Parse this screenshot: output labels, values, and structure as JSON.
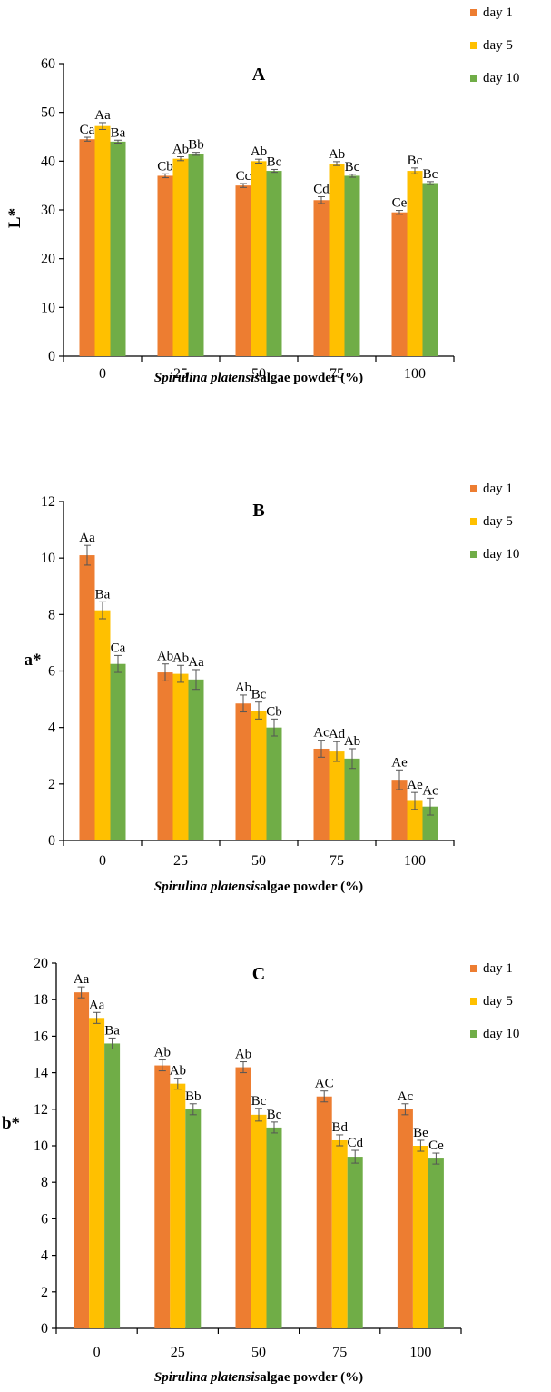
{
  "colors": {
    "day_1": "#ED7D31",
    "day_5": "#FFC000",
    "day_10": "#70AD47",
    "axis": "#000000",
    "error_bar": "#555555"
  },
  "legend": {
    "position": "top-right"
  },
  "chart_data": [
    {
      "type": "bar",
      "title": "A",
      "ylabel": "L*",
      "xlabel_italic": "Spirulina platensis",
      "xlabel_rest": "algae powder (%)",
      "categories": [
        "0",
        "25",
        "50",
        "75",
        "100"
      ],
      "ylim": [
        0,
        60
      ],
      "yticks": [
        "0",
        "10",
        "20",
        "30",
        "40",
        "50",
        "60"
      ],
      "grid": false,
      "series": [
        {
          "name": "day 1",
          "values": [
            44.5,
            37,
            35,
            32,
            29.5
          ],
          "errors": [
            0.4,
            0.4,
            0.4,
            0.7,
            0.4
          ],
          "labels": [
            "Ca",
            "Cb",
            "Cc",
            "Cd",
            "Ce"
          ]
        },
        {
          "name": "day 5",
          "values": [
            47.2,
            40.5,
            40,
            39.5,
            38
          ],
          "errors": [
            0.7,
            0.4,
            0.4,
            0.4,
            0.6
          ],
          "labels": [
            "Aa",
            "Ab",
            "Ab",
            "Ab",
            "Bc"
          ]
        },
        {
          "name": "day 10",
          "values": [
            44,
            41.5,
            38,
            37,
            35.5
          ],
          "errors": [
            0.3,
            0.3,
            0.3,
            0.3,
            0.3
          ],
          "labels": [
            "Ba",
            "Bb",
            "Bc",
            "Bc",
            "Bc"
          ]
        }
      ]
    },
    {
      "type": "bar",
      "title": "B",
      "ylabel": "a*",
      "xlabel_italic": "Spirulina platensis",
      "xlabel_rest": "algae powder (%)",
      "categories": [
        "0",
        "25",
        "50",
        "75",
        "100"
      ],
      "ylim": [
        0,
        12
      ],
      "yticks": [
        "0",
        "2",
        "4",
        "6",
        "8",
        "10",
        "12"
      ],
      "grid": false,
      "series": [
        {
          "name": "day 1",
          "values": [
            10.1,
            5.95,
            4.85,
            3.25,
            2.15
          ],
          "errors": [
            0.35,
            0.3,
            0.3,
            0.3,
            0.35
          ],
          "labels": [
            "Aa",
            "Ab",
            "Ab",
            "Ac",
            "Ae"
          ]
        },
        {
          "name": "day 5",
          "values": [
            8.15,
            5.9,
            4.6,
            3.15,
            1.4
          ],
          "errors": [
            0.3,
            0.3,
            0.3,
            0.35,
            0.3
          ],
          "labels": [
            "Ba",
            "Ab",
            "Bc",
            "Ad",
            "Ae"
          ]
        },
        {
          "name": "day 10",
          "values": [
            6.25,
            5.7,
            4.0,
            2.9,
            1.2
          ],
          "errors": [
            0.3,
            0.35,
            0.3,
            0.35,
            0.3
          ],
          "labels": [
            "Ca",
            "Aa",
            "Cb",
            "Ab",
            "Ac"
          ]
        }
      ]
    },
    {
      "type": "bar",
      "title": "C",
      "ylabel": "b*",
      "xlabel_italic": "Spirulina platensis",
      "xlabel_rest": "algae powder (%)",
      "categories": [
        "0",
        "25",
        "50",
        "75",
        "100"
      ],
      "ylim": [
        0,
        20
      ],
      "yticks": [
        "0",
        "2",
        "4",
        "6",
        "8",
        "10",
        "12",
        "14",
        "16",
        "18",
        "20"
      ],
      "grid": false,
      "series": [
        {
          "name": "day 1",
          "values": [
            18.4,
            14.4,
            14.3,
            12.7,
            12.0
          ],
          "errors": [
            0.3,
            0.3,
            0.3,
            0.3,
            0.3
          ],
          "labels": [
            "Aa",
            "Ab",
            "Ab",
            "AC",
            "Ac"
          ]
        },
        {
          "name": "day 5",
          "values": [
            17.0,
            13.4,
            11.7,
            10.3,
            10.0
          ],
          "errors": [
            0.3,
            0.3,
            0.35,
            0.3,
            0.3
          ],
          "labels": [
            "Aa",
            "Ab",
            "Bc",
            "Bd",
            "Be"
          ]
        },
        {
          "name": "day 10",
          "values": [
            15.6,
            12.0,
            11.0,
            9.4,
            9.3
          ],
          "errors": [
            0.3,
            0.3,
            0.3,
            0.35,
            0.3
          ],
          "labels": [
            "Ba",
            "Bb",
            "Bc",
            "Cd",
            "Ce"
          ]
        }
      ]
    }
  ]
}
